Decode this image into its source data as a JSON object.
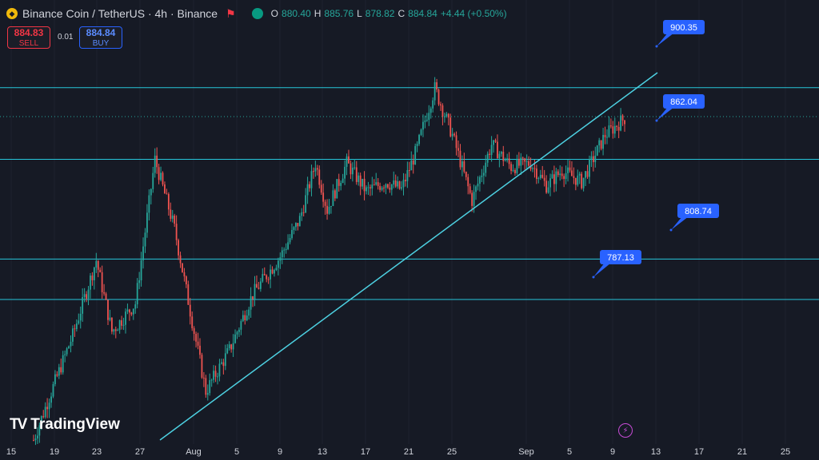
{
  "header": {
    "symbol_icon": "binance-coin-icon",
    "title": "Binance Coin / TetherUS · 4h · Binance",
    "flag_icon": "flag-icon",
    "visibility_icon": "eye-icon",
    "ohlc": {
      "open_label": "O",
      "open": "880.40",
      "high_label": "H",
      "high": "885.76",
      "low_label": "L",
      "low": "878.82",
      "close_label": "C",
      "close": "884.84",
      "change": "+4.44 (+0.50%)"
    }
  },
  "trade": {
    "sell_price": "884.83",
    "sell_label": "SELL",
    "spread": "0.01",
    "buy_price": "884.84",
    "buy_label": "BUY"
  },
  "logo": {
    "text": "TradingView",
    "mark": "TV"
  },
  "colors": {
    "background": "#161a25",
    "up": "#26a69a",
    "down": "#ef5350",
    "level_line": "#26c6da",
    "trendline": "#4dd0e1",
    "callout": "#2962ff"
  },
  "chart_data": {
    "type": "candlestick",
    "x_tick_labels": [
      "15",
      "19",
      "23",
      "27",
      "Aug",
      "5",
      "9",
      "13",
      "17",
      "21",
      "25",
      "Sep",
      "5",
      "9",
      "13",
      "17",
      "21",
      "25"
    ],
    "levels": [
      {
        "label": "900.35",
        "value": 900.35
      },
      {
        "label": "862.04",
        "value": 862.04
      },
      {
        "label": "808.74",
        "value": 808.74
      },
      {
        "label": "787.13",
        "value": 787.13
      }
    ],
    "current_price": 884.84,
    "ylim": [
      712,
      922
    ],
    "series_keypoints": [
      {
        "i": 0,
        "v": 712
      },
      {
        "i": 8,
        "v": 735
      },
      {
        "i": 20,
        "v": 768
      },
      {
        "i": 32,
        "v": 808
      },
      {
        "i": 40,
        "v": 770
      },
      {
        "i": 52,
        "v": 785
      },
      {
        "i": 62,
        "v": 862
      },
      {
        "i": 72,
        "v": 825
      },
      {
        "i": 82,
        "v": 770
      },
      {
        "i": 88,
        "v": 738
      },
      {
        "i": 100,
        "v": 760
      },
      {
        "i": 112,
        "v": 790
      },
      {
        "i": 126,
        "v": 810
      },
      {
        "i": 136,
        "v": 830
      },
      {
        "i": 144,
        "v": 860
      },
      {
        "i": 150,
        "v": 835
      },
      {
        "i": 160,
        "v": 860
      },
      {
        "i": 170,
        "v": 845
      },
      {
        "i": 180,
        "v": 850
      },
      {
        "i": 188,
        "v": 846
      },
      {
        "i": 196,
        "v": 868
      },
      {
        "i": 200,
        "v": 883
      },
      {
        "i": 205,
        "v": 900
      },
      {
        "i": 214,
        "v": 875
      },
      {
        "i": 224,
        "v": 840
      },
      {
        "i": 234,
        "v": 870
      },
      {
        "i": 244,
        "v": 858
      },
      {
        "i": 254,
        "v": 860
      },
      {
        "i": 262,
        "v": 848
      },
      {
        "i": 270,
        "v": 856
      },
      {
        "i": 280,
        "v": 850
      },
      {
        "i": 292,
        "v": 875
      },
      {
        "i": 302,
        "v": 884
      }
    ]
  }
}
